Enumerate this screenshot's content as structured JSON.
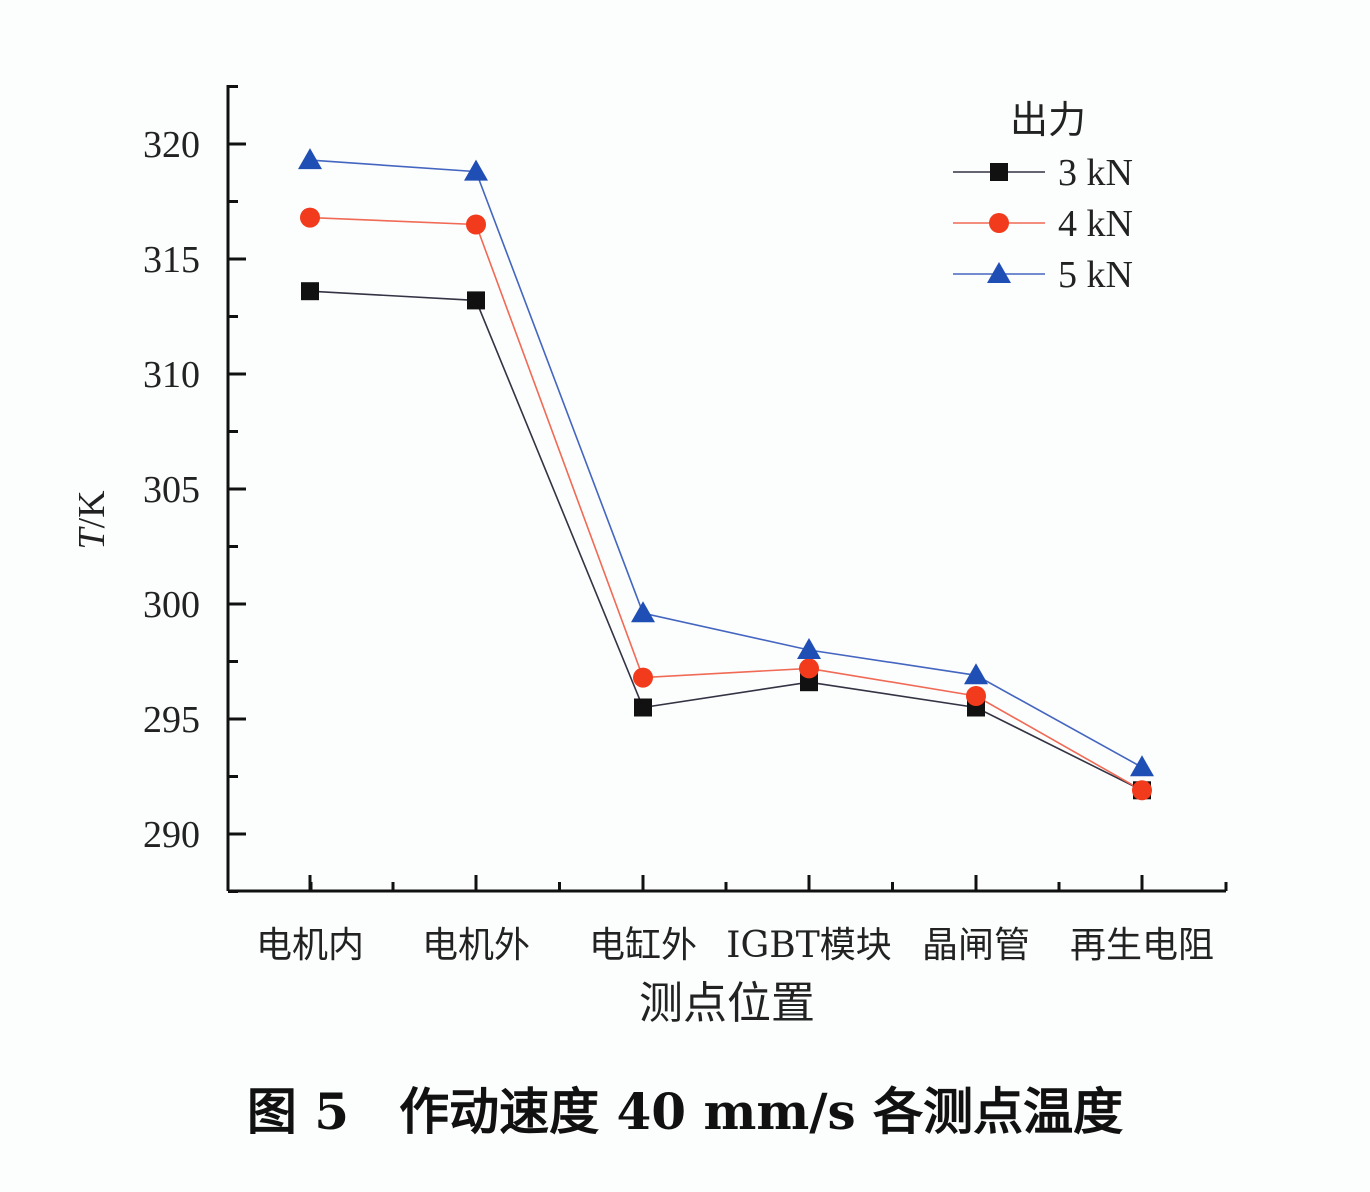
{
  "chart_data": {
    "type": "line",
    "xlabel": "测点位置",
    "ylabel": "T/K",
    "ylabel_italic_part": "T",
    "ylabel_rest": "/K",
    "categories": [
      "电机内",
      "电机外",
      "电缸外",
      "IGBT模块",
      "晶闸管",
      "再生电阻"
    ],
    "ylim": [
      287.5,
      322.5
    ],
    "yticks": [
      290,
      295,
      300,
      305,
      310,
      315,
      320
    ],
    "ytick_labels": [
      "290",
      "295",
      "300",
      "305",
      "310",
      "315",
      "320"
    ],
    "grid": false,
    "legend": {
      "title": "出力",
      "placement": "top-right"
    },
    "series": [
      {
        "name": "3 kN",
        "color": "#111111",
        "line_color": "#333344",
        "marker": "square",
        "values": [
          313.6,
          313.2,
          295.5,
          296.6,
          295.5,
          291.9
        ]
      },
      {
        "name": "4 kN",
        "color": "#f23a1c",
        "line_color": "#f06a55",
        "marker": "circle",
        "values": [
          316.8,
          316.5,
          296.8,
          297.2,
          296.0,
          291.9
        ]
      },
      {
        "name": "5 kN",
        "color": "#1f4fb5",
        "line_color": "#4466c0",
        "marker": "triangle",
        "values": [
          319.3,
          318.8,
          299.6,
          298.0,
          296.9,
          292.9
        ]
      }
    ]
  },
  "caption": "图 5　作动速度 40 mm/s 各测点温度"
}
